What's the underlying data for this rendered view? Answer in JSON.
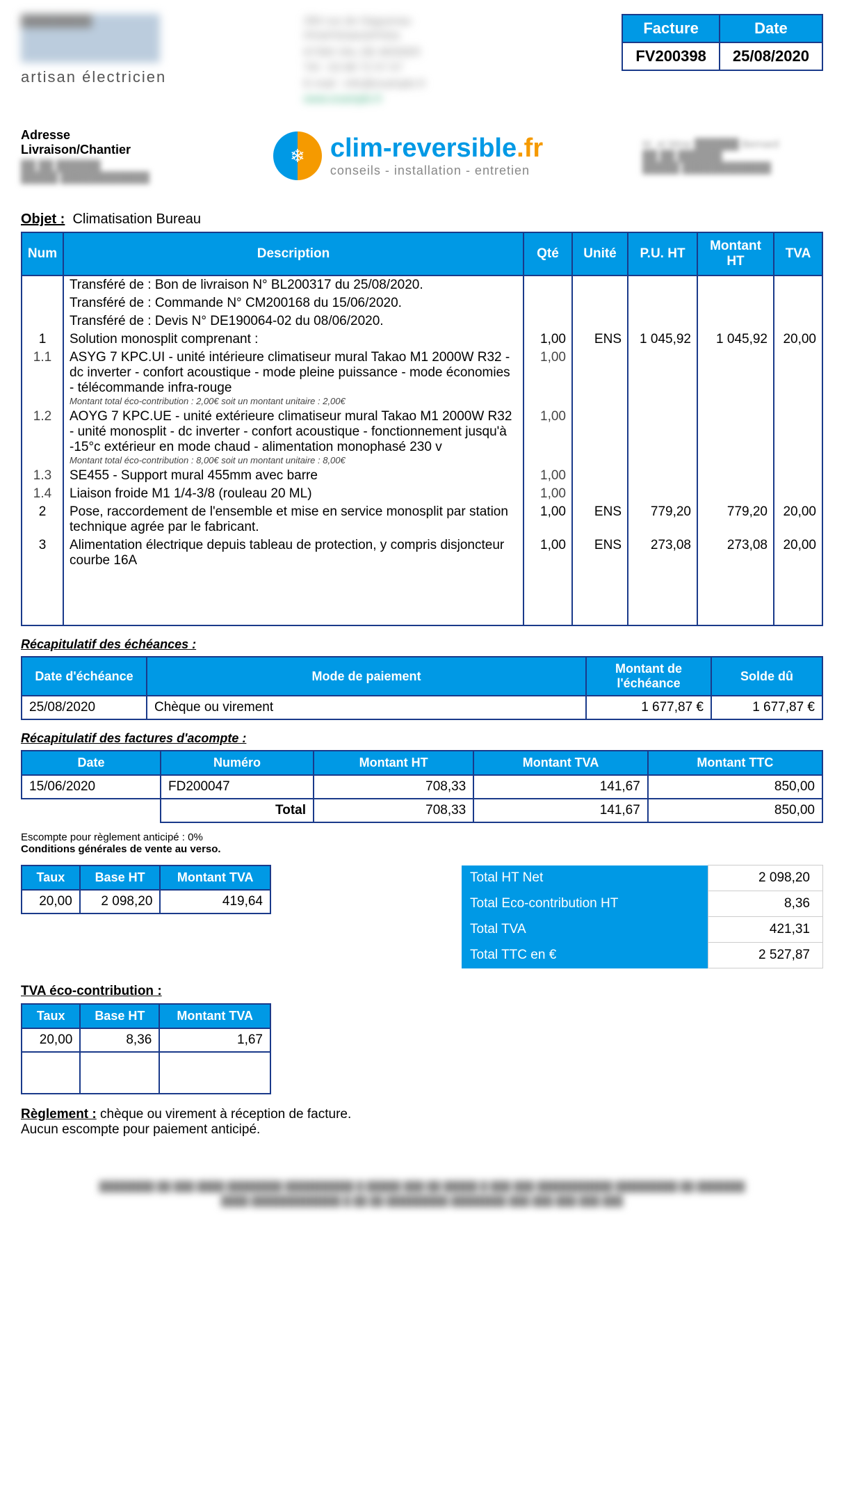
{
  "header": {
    "tagline": "artisan électricien",
    "meta": {
      "facture_label": "Facture",
      "date_label": "Date",
      "facture_num": "FV200398",
      "date": "25/08/2020"
    }
  },
  "delivery": {
    "label": "Adresse Livraison/Chantier"
  },
  "clim_logo": {
    "text_blue": "clim-reversible",
    "text_orange": ".fr",
    "subtitle": "conseils  -  installation  -  entretien"
  },
  "objet": {
    "label": "Objet :",
    "value": "Climatisation Bureau"
  },
  "items_table": {
    "headers": {
      "num": "Num",
      "desc": "Description",
      "qte": "Qté",
      "unite": "Unité",
      "puht": "P.U. HT",
      "mht": "Montant HT",
      "tva": "TVA"
    },
    "transfer_lines": [
      "Transféré de : Bon de livraison N° BL200317 du 25/08/2020.",
      "Transféré de : Commande N° CM200168 du 15/06/2020.",
      "Transféré de : Devis N° DE190064-02 du 08/06/2020."
    ],
    "rows": [
      {
        "num": "1",
        "desc": "Solution monosplit comprenant :",
        "qte": "1,00",
        "unite": "ENS",
        "puht": "1 045,92",
        "mht": "1 045,92",
        "tva": "20,00"
      },
      {
        "num": "1.1",
        "sub": true,
        "desc": "ASYG 7 KPC.UI - unité intérieure climatiseur mural Takao M1 2000W R32 -dc inverter - confort acoustique - mode pleine puissance - mode économies - télécommande infra-rouge",
        "eco": "Montant total éco-contribution : 2,00€ soit  un montant unitaire : 2,00€",
        "qte": "1,00"
      },
      {
        "num": "1.2",
        "sub": true,
        "desc": "AOYG 7 KPC.UE - unité extérieure climatiseur mural Takao M1 2000W R32 - unité monosplit - dc inverter - confort acoustique - fonctionnement jusqu'à -15°c extérieur en mode chaud - alimentation monophasé 230 v",
        "eco": "Montant total éco-contribution : 8,00€ soit  un montant unitaire : 8,00€",
        "qte": "1,00"
      },
      {
        "num": "1.3",
        "sub": true,
        "desc": "SE455 - Support mural 455mm avec barre",
        "qte": "1,00"
      },
      {
        "num": "1.4",
        "sub": true,
        "desc": "Liaison froide M1 1/4-3/8 (rouleau 20 ML)",
        "qte": "1,00"
      },
      {
        "num": "2",
        "desc": "Pose, raccordement de l'ensemble et mise en service monosplit par station technique agrée par le fabricant.",
        "qte": "1,00",
        "unite": "ENS",
        "puht": "779,20",
        "mht": "779,20",
        "tva": "20,00"
      },
      {
        "num": "3",
        "desc": "Alimentation électrique depuis tableau de protection, y compris disjoncteur courbe 16A",
        "qte": "1,00",
        "unite": "ENS",
        "puht": "273,08",
        "mht": "273,08",
        "tva": "20,00"
      }
    ]
  },
  "echeances": {
    "label": "Récapitulatif des échéances :",
    "headers": {
      "date": "Date d'échéance",
      "mode": "Mode de paiement",
      "montant": "Montant de l'échéance",
      "solde": "Solde dû"
    },
    "row": {
      "date": "25/08/2020",
      "mode": "Chèque ou virement",
      "montant": "1 677,87 €",
      "solde": "1 677,87 €"
    }
  },
  "acomptes": {
    "label": "Récapitulatif des factures d'acompte :",
    "headers": {
      "date": "Date",
      "numero": "Numéro",
      "ht": "Montant HT",
      "tva": "Montant TVA",
      "ttc": "Montant TTC"
    },
    "rows": [
      {
        "date": "15/06/2020",
        "numero": "FD200047",
        "ht": "708,33",
        "tva": "141,67",
        "ttc": "850,00"
      }
    ],
    "total_label": "Total",
    "total": {
      "ht": "708,33",
      "tva": "141,67",
      "ttc": "850,00"
    }
  },
  "conditions": {
    "line1": "Escompte pour règlement anticipé : 0%",
    "line2": "Conditions générales de vente au verso."
  },
  "tva_table": {
    "headers": {
      "taux": "Taux",
      "base": "Base HT",
      "montant": "Montant TVA"
    },
    "row": {
      "taux": "20,00",
      "base": "2 098,20",
      "montant": "419,64"
    }
  },
  "totals": {
    "rows": [
      {
        "label": "Total HT Net",
        "value": "2 098,20"
      },
      {
        "label": "Total Eco-contribution HT",
        "value": "8,36"
      },
      {
        "label": "Total TVA",
        "value": "421,31"
      },
      {
        "label": "Total TTC en €",
        "value": "2 527,87"
      }
    ]
  },
  "tva_eco": {
    "label": "TVA éco-contribution :",
    "headers": {
      "taux": "Taux",
      "base": "Base HT",
      "montant": "Montant TVA"
    },
    "row": {
      "taux": "20,00",
      "base": "8,36",
      "montant": "1,67"
    }
  },
  "reglement": {
    "label": "Règlement :",
    "text": "chèque ou virement à réception de facture.",
    "line2": "Aucun escompte pour paiement anticipé."
  }
}
